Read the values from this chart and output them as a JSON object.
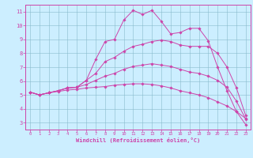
{
  "xlabel": "Windchill (Refroidissement éolien,°C)",
  "background_color": "#cceeff",
  "line_color": "#cc44aa",
  "xlim": [
    -0.5,
    23.5
  ],
  "ylim": [
    2.5,
    11.5
  ],
  "yticks": [
    3,
    4,
    5,
    6,
    7,
    8,
    9,
    10,
    11
  ],
  "xticks": [
    0,
    1,
    2,
    3,
    4,
    5,
    6,
    7,
    8,
    9,
    10,
    11,
    12,
    13,
    14,
    15,
    16,
    17,
    18,
    19,
    20,
    21,
    22,
    23
  ],
  "lines": [
    {
      "x": [
        0,
        1,
        2,
        3,
        4,
        5,
        6,
        7,
        8,
        9,
        10,
        11,
        12,
        13,
        14,
        15,
        16,
        17,
        18,
        19,
        20,
        21,
        22,
        23
      ],
      "y": [
        5.2,
        5.0,
        5.15,
        5.3,
        5.5,
        5.55,
        6.05,
        7.55,
        8.85,
        9.0,
        10.4,
        11.1,
        10.8,
        11.1,
        10.3,
        9.4,
        9.5,
        9.8,
        9.8,
        8.9,
        7.0,
        5.3,
        3.8,
        2.85
      ]
    },
    {
      "x": [
        0,
        1,
        2,
        3,
        4,
        5,
        6,
        7,
        8,
        9,
        10,
        11,
        12,
        13,
        14,
        15,
        16,
        17,
        18,
        19,
        20,
        21,
        22,
        23
      ],
      "y": [
        5.2,
        5.0,
        5.15,
        5.3,
        5.5,
        5.55,
        6.05,
        6.55,
        7.4,
        7.7,
        8.15,
        8.5,
        8.65,
        8.85,
        8.95,
        8.85,
        8.6,
        8.5,
        8.5,
        8.5,
        8.0,
        7.0,
        5.5,
        3.5
      ]
    },
    {
      "x": [
        0,
        1,
        2,
        3,
        4,
        5,
        6,
        7,
        8,
        9,
        10,
        11,
        12,
        13,
        14,
        15,
        16,
        17,
        18,
        19,
        20,
        21,
        22,
        23
      ],
      "y": [
        5.2,
        5.0,
        5.15,
        5.3,
        5.5,
        5.55,
        5.75,
        6.05,
        6.35,
        6.55,
        6.85,
        7.05,
        7.15,
        7.25,
        7.15,
        7.05,
        6.85,
        6.65,
        6.55,
        6.35,
        6.05,
        5.55,
        4.55,
        3.25
      ]
    },
    {
      "x": [
        0,
        1,
        2,
        3,
        4,
        5,
        6,
        7,
        8,
        9,
        10,
        11,
        12,
        13,
        14,
        15,
        16,
        17,
        18,
        19,
        20,
        21,
        22,
        23
      ],
      "y": [
        5.2,
        5.0,
        5.15,
        5.25,
        5.35,
        5.4,
        5.5,
        5.55,
        5.6,
        5.7,
        5.75,
        5.8,
        5.8,
        5.75,
        5.65,
        5.5,
        5.3,
        5.15,
        5.0,
        4.8,
        4.5,
        4.2,
        3.8,
        3.3
      ]
    }
  ]
}
